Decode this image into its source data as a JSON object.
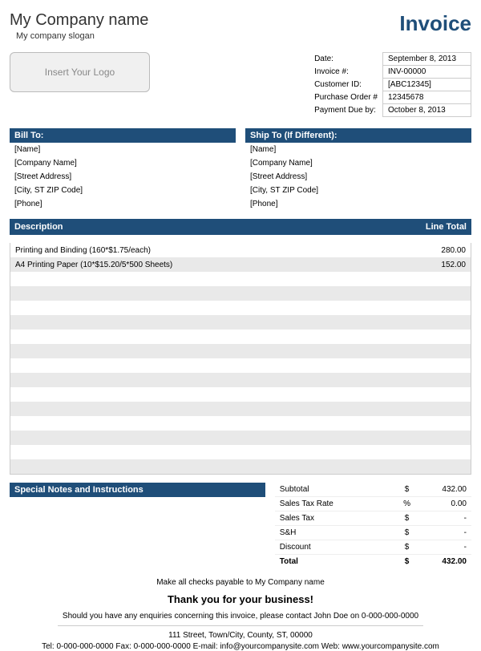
{
  "colors": {
    "accent": "#1f4e79",
    "stripe": "#e9e9e9",
    "border": "#cccccc"
  },
  "header": {
    "company_name": "My Company name",
    "slogan": "My company slogan",
    "invoice_title": "Invoice",
    "logo_placeholder": "Insert Your Logo"
  },
  "meta": {
    "labels": {
      "date": "Date:",
      "invoice_no": "Invoice #:",
      "customer_id": "Customer ID:",
      "po": "Purchase Order #",
      "due": "Payment Due by:"
    },
    "values": {
      "date": "September 8, 2013",
      "invoice_no": "INV-00000",
      "customer_id": "[ABC12345]",
      "po": "12345678",
      "due": "October 8, 2013"
    }
  },
  "bill_to": {
    "title": "Bill To:",
    "lines": [
      "[Name]",
      "[Company Name]",
      "[Street Address]",
      "[City, ST  ZIP Code]",
      "[Phone]"
    ]
  },
  "ship_to": {
    "title": "Ship To (If Different):",
    "lines": [
      "[Name]",
      "[Company Name]",
      "[Street Address]",
      "[City, ST  ZIP Code]",
      "[Phone]"
    ]
  },
  "items": {
    "col_desc": "Description",
    "col_total": "Line Total",
    "row_count": 16,
    "rows": [
      {
        "desc": "Printing and Binding (160*$1.75/each)",
        "total": "280.00"
      },
      {
        "desc": "A4 Printing Paper (10*$15.20/5*500 Sheets)",
        "total": "152.00"
      }
    ]
  },
  "notes": {
    "title": "Special Notes and Instructions"
  },
  "totals": {
    "rows": [
      {
        "label": "Subtotal",
        "sym": "$",
        "val": "432.00"
      },
      {
        "label": "Sales Tax Rate",
        "sym": "%",
        "val": "0.00"
      },
      {
        "label": "Sales Tax",
        "sym": "$",
        "val": "-"
      },
      {
        "label": "S&H",
        "sym": "$",
        "val": "-"
      },
      {
        "label": "Discount",
        "sym": "$",
        "val": "-"
      }
    ],
    "total_label": "Total",
    "total_sym": "$",
    "total_val": "432.00"
  },
  "footer": {
    "payable": "Make all checks payable to My Company name",
    "thanks": "Thank you for your business!",
    "enquiry": "Should you have any enquiries concerning this invoice, please contact John Doe on 0-000-000-0000",
    "address": "111 Street, Town/City, County, ST, 00000",
    "contact": "Tel: 0-000-000-0000 Fax: 0-000-000-0000 E-mail: info@yourcompanysite.com Web: www.yourcompanysite.com"
  }
}
